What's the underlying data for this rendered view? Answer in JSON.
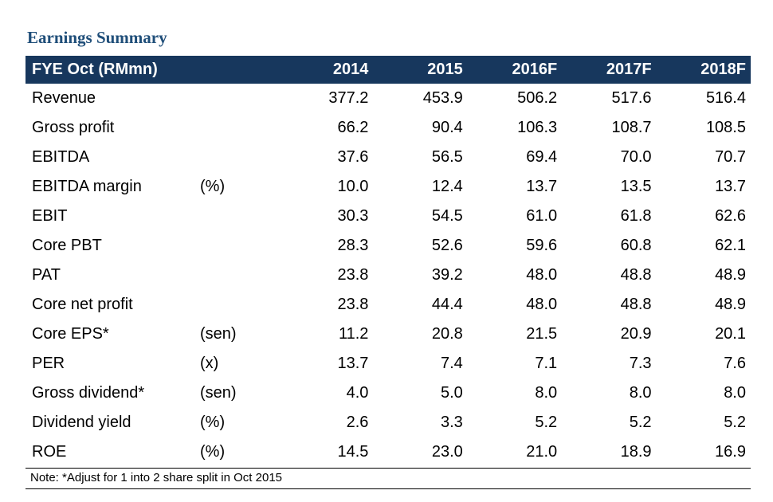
{
  "title": "Earnings Summary",
  "table": {
    "header": {
      "label": "FYE Oct (RMmn)",
      "years": [
        "2014",
        "2015",
        "2016F",
        "2017F",
        "2018F"
      ]
    },
    "rows": [
      {
        "label": "Revenue",
        "unit": "",
        "values": [
          "377.2",
          "453.9",
          "506.2",
          "517.6",
          "516.4"
        ]
      },
      {
        "label": "Gross profit",
        "unit": "",
        "values": [
          "66.2",
          "90.4",
          "106.3",
          "108.7",
          "108.5"
        ]
      },
      {
        "label": "EBITDA",
        "unit": "",
        "values": [
          "37.6",
          "56.5",
          "69.4",
          "70.0",
          "70.7"
        ]
      },
      {
        "label": "EBITDA margin",
        "unit": "(%)",
        "values": [
          "10.0",
          "12.4",
          "13.7",
          "13.5",
          "13.7"
        ]
      },
      {
        "label": "EBIT",
        "unit": "",
        "values": [
          "30.3",
          "54.5",
          "61.0",
          "61.8",
          "62.6"
        ]
      },
      {
        "label": "Core PBT",
        "unit": "",
        "values": [
          "28.3",
          "52.6",
          "59.6",
          "60.8",
          "62.1"
        ]
      },
      {
        "label": "PAT",
        "unit": "",
        "values": [
          "23.8",
          "39.2",
          "48.0",
          "48.8",
          "48.9"
        ]
      },
      {
        "label": "Core net profit",
        "unit": "",
        "values": [
          "23.8",
          "44.4",
          "48.0",
          "48.8",
          "48.9"
        ]
      },
      {
        "label": "Core EPS*",
        "unit": "(sen)",
        "values": [
          "11.2",
          "20.8",
          "21.5",
          "20.9",
          "20.1"
        ]
      },
      {
        "label": "PER",
        "unit": "(x)",
        "values": [
          "13.7",
          "7.4",
          "7.1",
          "7.3",
          "7.6"
        ]
      },
      {
        "label": "Gross dividend*",
        "unit": "(sen)",
        "values": [
          "4.0",
          "5.0",
          "8.0",
          "8.0",
          "8.0"
        ]
      },
      {
        "label": "Dividend yield",
        "unit": "(%)",
        "values": [
          "2.6",
          "3.3",
          "5.2",
          "5.2",
          "5.2"
        ]
      },
      {
        "label": "ROE",
        "unit": "(%)",
        "values": [
          "14.5",
          "23.0",
          "21.0",
          "18.9",
          "16.9"
        ]
      }
    ],
    "note": "Note: *Adjust for 1 into 2 share split in Oct 2015"
  },
  "colors": {
    "header_bg": "#17375D",
    "header_text": "#FFFFFF",
    "title_text": "#1F4E79",
    "body_text": "#000000"
  }
}
